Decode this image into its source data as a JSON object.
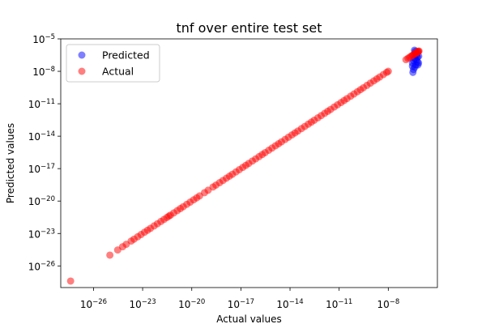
{
  "chart_data": {
    "type": "scatter",
    "title": "tnf over entire test set",
    "xlabel": "Actual values",
    "ylabel": "Predicted values",
    "x_scale": "log",
    "y_scale": "log",
    "xlim": [
      1e-28,
      1e-05
    ],
    "ylim": [
      1e-28,
      1e-05
    ],
    "x_ticks": [
      {
        "value": 1e-26,
        "label": "10",
        "exp": "−26"
      },
      {
        "value": 1e-23,
        "label": "10",
        "exp": "−23"
      },
      {
        "value": 1e-20,
        "label": "10",
        "exp": "−20"
      },
      {
        "value": 1e-17,
        "label": "10",
        "exp": "−17"
      },
      {
        "value": 1e-14,
        "label": "10",
        "exp": "−14"
      },
      {
        "value": 1e-11,
        "label": "10",
        "exp": "−11"
      },
      {
        "value": 1e-08,
        "label": "10",
        "exp": "−8"
      }
    ],
    "y_ticks": [
      {
        "value": 1e-26,
        "label": "10",
        "exp": "−26"
      },
      {
        "value": 1e-23,
        "label": "10",
        "exp": "−23"
      },
      {
        "value": 1e-20,
        "label": "10",
        "exp": "−20"
      },
      {
        "value": 1e-17,
        "label": "10",
        "exp": "−17"
      },
      {
        "value": 1e-14,
        "label": "10",
        "exp": "−14"
      },
      {
        "value": 1e-11,
        "label": "10",
        "exp": "−11"
      },
      {
        "value": 1e-08,
        "label": "10",
        "exp": "−8"
      },
      {
        "value": 1e-05,
        "label": "10",
        "exp": "−5"
      }
    ],
    "grid": false,
    "legend_position": "top-left",
    "series": [
      {
        "name": "Predicted",
        "color": "#0000ff",
        "points": [
          [
            4e-07,
            9e-07
          ],
          [
            4.5e-07,
            7e-07
          ],
          [
            5e-07,
            5e-07
          ],
          [
            5.5e-07,
            3e-07
          ],
          [
            6e-07,
            2e-07
          ],
          [
            4e-07,
            1.5e-07
          ],
          [
            3.5e-07,
            1e-07
          ],
          [
            3e-07,
            6e-08
          ],
          [
            3e-07,
            3e-08
          ],
          [
            3.5e-07,
            1.5e-08
          ],
          [
            3.2e-07,
            8e-09
          ],
          [
            4.2e-07,
            2.5e-08
          ],
          [
            6.5e-07,
            4e-08
          ],
          [
            7e-07,
            6e-08
          ],
          [
            7.2e-07,
            2.5e-07
          ],
          [
            5e-07,
            1.2e-07
          ],
          [
            6e-07,
            8e-08
          ],
          [
            4.8e-07,
            4e-08
          ]
        ]
      },
      {
        "name": "Actual",
        "color": "#ff0000",
        "points": [
          [
            4e-28,
            4e-28
          ],
          [
            1e-25,
            1e-25
          ],
          [
            3e-25,
            3e-25
          ],
          [
            6e-25,
            6e-25
          ],
          [
            1e-24,
            1e-24
          ],
          [
            2e-24,
            2e-24
          ],
          [
            3e-24,
            3e-24
          ],
          [
            5e-24,
            5e-24
          ],
          [
            8e-24,
            8e-24
          ],
          [
            1.3e-23,
            1.3e-23
          ],
          [
            2e-23,
            2e-23
          ],
          [
            3e-23,
            3e-23
          ],
          [
            5e-23,
            5e-23
          ],
          [
            8e-23,
            8e-23
          ],
          [
            1.3e-22,
            1.3e-22
          ],
          [
            2e-22,
            2e-22
          ],
          [
            3e-22,
            3e-22
          ],
          [
            4e-22,
            4e-22
          ],
          [
            5e-22,
            5e-22
          ],
          [
            8e-22,
            8e-22
          ],
          [
            1.3e-21,
            1.3e-21
          ],
          [
            2e-21,
            2e-21
          ],
          [
            3e-21,
            3e-21
          ],
          [
            5e-21,
            5e-21
          ],
          [
            8e-21,
            8e-21
          ],
          [
            1.3e-20,
            1.3e-20
          ],
          [
            2e-20,
            2e-20
          ],
          [
            3e-20,
            3e-20
          ],
          [
            6e-20,
            6e-20
          ],
          [
            1e-19,
            1e-19
          ],
          [
            2e-19,
            2e-19
          ],
          [
            3e-19,
            3e-19
          ],
          [
            5e-19,
            5e-19
          ],
          [
            8e-19,
            8e-19
          ],
          [
            1.3e-18,
            1.3e-18
          ],
          [
            2e-18,
            2e-18
          ],
          [
            3e-18,
            3e-18
          ],
          [
            5e-18,
            5e-18
          ],
          [
            8e-18,
            8e-18
          ],
          [
            1.3e-17,
            1.3e-17
          ],
          [
            2e-17,
            2e-17
          ],
          [
            3e-17,
            3e-17
          ],
          [
            5e-17,
            5e-17
          ],
          [
            8e-17,
            8e-17
          ],
          [
            1.3e-16,
            1.3e-16
          ],
          [
            2e-16,
            2e-16
          ],
          [
            3e-16,
            3e-16
          ],
          [
            5e-16,
            5e-16
          ],
          [
            8e-16,
            8e-16
          ],
          [
            1.3e-15,
            1.3e-15
          ],
          [
            2e-15,
            2e-15
          ],
          [
            3e-15,
            3e-15
          ],
          [
            5e-15,
            5e-15
          ],
          [
            8e-15,
            8e-15
          ],
          [
            1.3e-14,
            1.3e-14
          ],
          [
            2e-14,
            2e-14
          ],
          [
            3e-14,
            3e-14
          ],
          [
            5e-14,
            5e-14
          ],
          [
            8e-14,
            8e-14
          ],
          [
            1.3e-13,
            1.3e-13
          ],
          [
            2e-13,
            2e-13
          ],
          [
            3e-13,
            3e-13
          ],
          [
            5e-13,
            5e-13
          ],
          [
            8e-13,
            8e-13
          ],
          [
            1.3e-12,
            1.3e-12
          ],
          [
            2e-12,
            2e-12
          ],
          [
            3e-12,
            3e-12
          ],
          [
            5e-12,
            5e-12
          ],
          [
            8e-12,
            8e-12
          ],
          [
            1.3e-11,
            1.3e-11
          ],
          [
            2e-11,
            2e-11
          ],
          [
            3e-11,
            3e-11
          ],
          [
            5e-11,
            5e-11
          ],
          [
            8e-11,
            8e-11
          ],
          [
            1.3e-10,
            1.3e-10
          ],
          [
            2e-10,
            2e-10
          ],
          [
            3e-10,
            3e-10
          ],
          [
            5e-10,
            5e-10
          ],
          [
            8e-10,
            8e-10
          ],
          [
            1.3e-09,
            1.3e-09
          ],
          [
            2e-09,
            2e-09
          ],
          [
            3e-09,
            3e-09
          ],
          [
            5e-09,
            5e-09
          ],
          [
            8e-09,
            8e-09
          ],
          [
            1e-08,
            1e-08
          ],
          [
            1.2e-07,
            1.2e-07
          ],
          [
            1.6e-07,
            1.6e-07
          ],
          [
            2e-07,
            2e-07
          ],
          [
            2.5e-07,
            2.5e-07
          ],
          [
            3e-07,
            3e-07
          ],
          [
            3.5e-07,
            3.5e-07
          ],
          [
            4e-07,
            4e-07
          ],
          [
            4.5e-07,
            4.5e-07
          ],
          [
            5e-07,
            5e-07
          ],
          [
            5.5e-07,
            5.5e-07
          ],
          [
            6e-07,
            6e-07
          ],
          [
            6.5e-07,
            6.5e-07
          ],
          [
            7e-07,
            7e-07
          ],
          [
            7.5e-07,
            7.5e-07
          ]
        ]
      }
    ]
  }
}
